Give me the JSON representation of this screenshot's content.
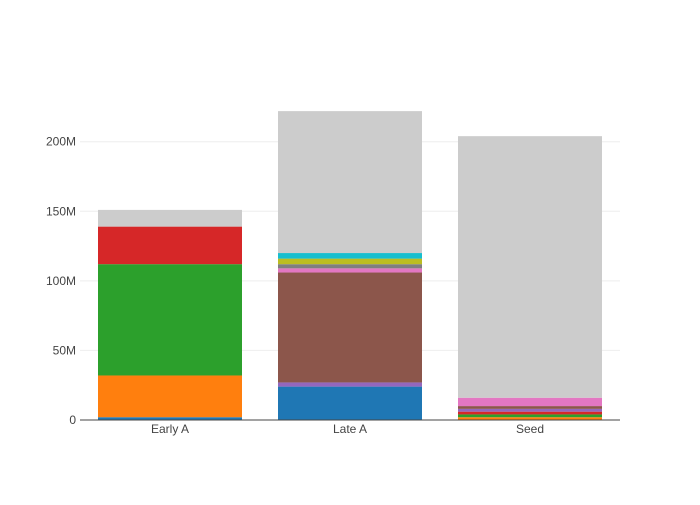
{
  "chart_data": {
    "type": "bar",
    "stacked": true,
    "categories": [
      "Early A",
      "Late A",
      "Seed"
    ],
    "ylim": [
      0,
      230000000
    ],
    "yticks": [
      {
        "value": 0,
        "label": "0"
      },
      {
        "value": 50000000,
        "label": "50M"
      },
      {
        "value": 100000000,
        "label": "100M"
      },
      {
        "value": 150000000,
        "label": "150M"
      },
      {
        "value": 200000000,
        "label": "200M"
      }
    ],
    "grid": true,
    "legend": "none",
    "series": [
      {
        "color": "#1f77b4",
        "values": [
          2000000,
          24000000,
          0
        ]
      },
      {
        "color": "#ff7f0e",
        "values": [
          30000000,
          0,
          2000000
        ]
      },
      {
        "color": "#2ca02c",
        "values": [
          80000000,
          0,
          2000000
        ]
      },
      {
        "color": "#d62728",
        "values": [
          27000000,
          0,
          2000000
        ]
      },
      {
        "color": "#9467bd",
        "values": [
          0,
          3000000,
          2000000
        ]
      },
      {
        "color": "#8c564b",
        "values": [
          0,
          79000000,
          2000000
        ]
      },
      {
        "color": "#e377c2",
        "values": [
          0,
          3000000,
          6000000
        ]
      },
      {
        "color": "#7f7f7f",
        "values": [
          0,
          3000000,
          0
        ]
      },
      {
        "color": "#bcbd22",
        "values": [
          0,
          4000000,
          0
        ]
      },
      {
        "color": "#17becf",
        "values": [
          0,
          4000000,
          0
        ]
      },
      {
        "color": "#cccccc",
        "values": [
          12000000,
          102000000,
          188000000
        ]
      }
    ]
  }
}
